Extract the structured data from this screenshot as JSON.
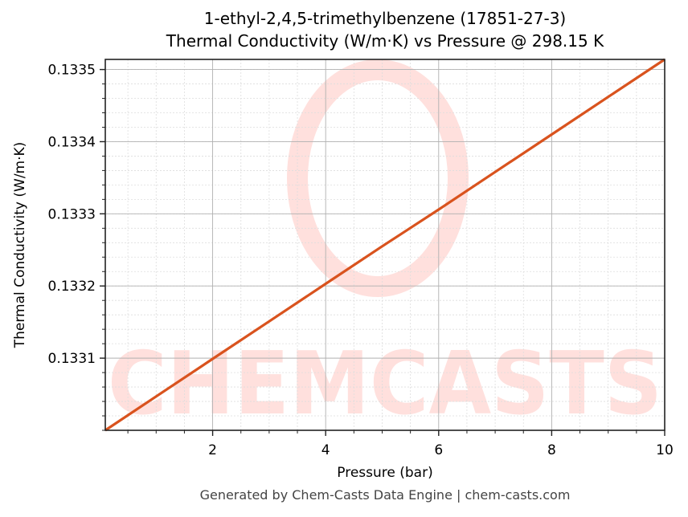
{
  "header": {
    "title_line1": "1-ethyl-2,4,5-trimethylbenzene (17851-27-3)",
    "title_line2": "Thermal Conductivity (W/m·K) vs Pressure @ 298.15 K"
  },
  "footer": {
    "text": "Generated by Chem-Casts Data Engine | chem-casts.com"
  },
  "watermark": {
    "text": "CHEMCASTS",
    "color": "#ffe0dd"
  },
  "colors": {
    "line": "#d9531e",
    "major_grid": "#b0b0b0",
    "minor_grid": "#dddddd",
    "axis": "#222222"
  },
  "chart_data": {
    "type": "line",
    "title": "1-ethyl-2,4,5-trimethylbenzene (17851-27-3)\nThermal Conductivity (W/m·K) vs Pressure @ 298.15 K",
    "xlabel": "Pressure (bar)",
    "ylabel": "Thermal Conductivity (W/m·K)",
    "xlim": [
      0.1,
      10
    ],
    "ylim": [
      0.133,
      0.133514
    ],
    "x_ticks": [
      2,
      4,
      6,
      8,
      10
    ],
    "x_tick_labels": [
      "2",
      "4",
      "6",
      "8",
      "10"
    ],
    "y_ticks": [
      0.1331,
      0.1332,
      0.1333,
      0.1334,
      0.1335
    ],
    "y_tick_labels": [
      "0.1331",
      "0.1332",
      "0.1333",
      "0.1334",
      "0.1335"
    ],
    "grid": true,
    "legend": null,
    "series": [
      {
        "name": "Thermal Conductivity",
        "color": "#d9531e",
        "x": [
          0.1,
          1,
          2,
          3,
          4,
          5,
          6,
          7,
          8,
          9,
          10
        ],
        "values": [
          0.133,
          0.133047,
          0.133099,
          0.133151,
          0.133203,
          0.133255,
          0.133306,
          0.133358,
          0.13341,
          0.133462,
          0.133514
        ]
      }
    ]
  }
}
